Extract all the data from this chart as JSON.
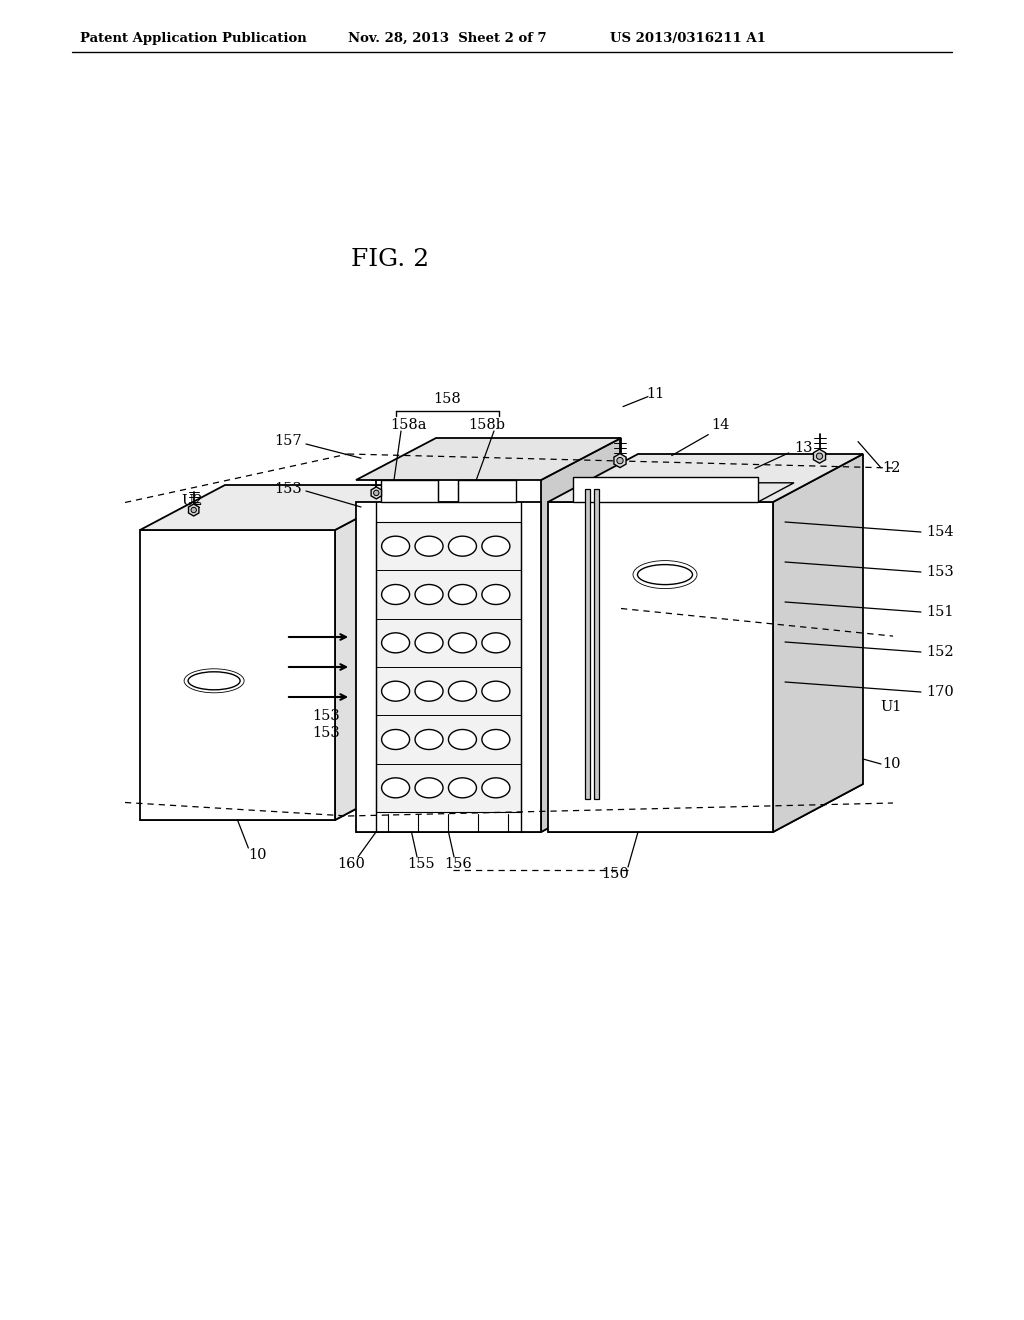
{
  "header_left": "Patent Application Publication",
  "header_mid": "Nov. 28, 2013  Sheet 2 of 7",
  "header_right": "US 2013/0316211 A1",
  "fig_label": "FIG. 2",
  "bg_color": "#ffffff",
  "line_color": "#000000",
  "lw_main": 1.3,
  "lw_thin": 0.9,
  "label_fs": 10.5,
  "header_fs": 9.5
}
